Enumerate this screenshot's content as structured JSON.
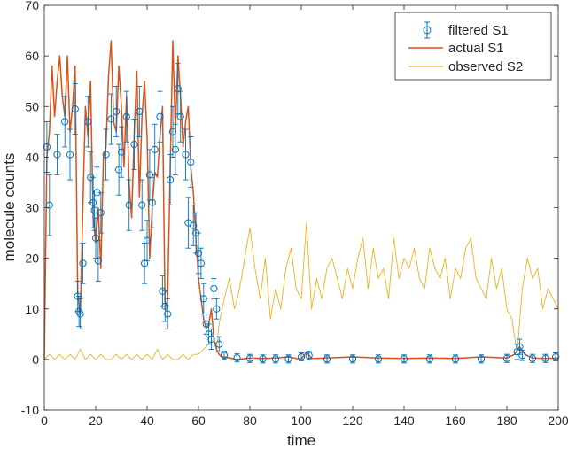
{
  "chart_data": {
    "type": "line",
    "xlabel": "time",
    "ylabel": "molecule counts",
    "xlim": [
      0,
      200
    ],
    "ylim": [
      -10,
      70
    ],
    "xticks": [
      0,
      20,
      40,
      60,
      80,
      100,
      120,
      140,
      160,
      180,
      200
    ],
    "yticks": [
      -10,
      0,
      10,
      20,
      30,
      40,
      50,
      60,
      70
    ],
    "grid": false,
    "legend_position": "top-right",
    "series": [
      {
        "name": "filtered S1",
        "kind": "errorbar",
        "color": "#0072BD",
        "x": [
          1,
          2,
          5,
          8,
          10,
          12,
          13,
          13.5,
          14,
          15,
          17,
          18,
          19,
          19.5,
          20,
          20.5,
          21,
          22,
          24,
          26,
          28,
          29,
          30,
          32,
          33,
          35,
          37,
          38,
          39,
          40,
          41,
          42,
          43,
          45,
          46,
          47,
          48,
          49,
          50,
          51,
          52,
          53,
          55,
          56,
          57,
          58,
          59,
          60,
          61,
          62,
          63,
          64,
          65,
          66,
          67,
          68,
          70,
          75,
          80,
          85,
          90,
          95,
          100,
          103,
          110,
          120,
          130,
          140,
          150,
          160,
          170,
          180,
          184,
          185,
          186,
          190,
          195,
          199
        ],
        "y": [
          42,
          30.5,
          40.5,
          47,
          40.5,
          49.5,
          12.5,
          9.5,
          9,
          19,
          47,
          36,
          31,
          29.5,
          24,
          33,
          19.5,
          29,
          40.5,
          47.5,
          49,
          37.5,
          41,
          48,
          30.5,
          42.5,
          49,
          30.5,
          19,
          23.5,
          36.5,
          31,
          41.5,
          48,
          13.5,
          10.5,
          9,
          35.5,
          45,
          41.5,
          53.5,
          48,
          40.5,
          27,
          39,
          26.5,
          25,
          21,
          19,
          12,
          7,
          5,
          4,
          14,
          10,
          3,
          0.8,
          0.3,
          0.2,
          0.1,
          0.1,
          0.1,
          0.5,
          0.8,
          0.1,
          0.1,
          0.1,
          0.1,
          0.1,
          0.1,
          0.1,
          0.2,
          1.5,
          2.5,
          0.8,
          0.2,
          0.2,
          0.5
        ],
        "err": [
          5,
          6,
          4,
          5,
          5,
          5,
          3,
          3,
          3,
          4,
          5,
          5,
          5,
          4,
          4,
          5,
          4,
          4,
          5,
          5,
          5,
          5,
          5,
          5,
          5,
          5,
          5,
          5,
          4,
          4,
          5,
          5,
          5,
          5,
          3,
          3,
          3,
          5,
          5,
          5,
          5,
          5,
          5,
          5,
          5,
          4,
          4,
          4,
          3,
          3,
          2,
          2,
          2,
          2,
          2,
          1.5,
          0.8,
          0.8,
          0.8,
          0.8,
          0.8,
          0.8,
          0.8,
          0.8,
          0.8,
          0.8,
          0.8,
          0.8,
          0.8,
          0.8,
          0.8,
          0.8,
          1.5,
          1.5,
          1,
          0.8,
          0.8,
          0.8
        ]
      },
      {
        "name": "actual S1",
        "kind": "line",
        "color": "#D95319",
        "x": [
          0,
          1,
          2,
          3,
          4,
          5,
          6,
          7,
          8,
          9,
          10,
          11,
          12,
          13,
          14,
          15,
          16,
          17,
          18,
          19,
          20,
          21,
          22,
          23,
          24,
          25,
          26,
          27,
          28,
          29,
          30,
          31,
          32,
          33,
          34,
          35,
          36,
          37,
          38,
          39,
          40,
          41,
          42,
          43,
          44,
          45,
          46,
          47,
          48,
          49,
          50,
          51,
          52,
          53,
          54,
          55,
          56,
          57,
          58,
          59,
          60,
          61,
          62,
          63,
          64,
          65,
          66,
          67,
          68,
          69,
          70,
          75,
          80,
          85,
          90,
          95,
          100,
          102,
          104,
          110,
          120,
          130,
          140,
          150,
          160,
          170,
          180,
          183,
          185,
          187,
          190,
          195,
          200
        ],
        "y": [
          0,
          40,
          45,
          58,
          48,
          55,
          60,
          52,
          48,
          60,
          45,
          50,
          58,
          13,
          9,
          30,
          50,
          44,
          55,
          28,
          23,
          30,
          18,
          40,
          42,
          56,
          63,
          47,
          45,
          58,
          50,
          38,
          52,
          35,
          28,
          45,
          57,
          32,
          48,
          55,
          44,
          20,
          30,
          37,
          36,
          44,
          50,
          10,
          12,
          38,
          63,
          45,
          60,
          52,
          42,
          47,
          50,
          38,
          33,
          24,
          16,
          12,
          8,
          6,
          7,
          10,
          4,
          2,
          1,
          0.5,
          0.5,
          0,
          0.3,
          0.2,
          0.3,
          0.5,
          0,
          1.5,
          0.2,
          0.3,
          0.5,
          0.3,
          0.2,
          0.3,
          0.2,
          0.5,
          0.3,
          1,
          2.5,
          1,
          0.3,
          0.2,
          0.3
        ]
      },
      {
        "name": "observed S2",
        "kind": "line",
        "color": "#EDB120",
        "x": [
          0,
          2,
          4,
          6,
          8,
          10,
          12,
          14,
          16,
          18,
          20,
          22,
          24,
          26,
          28,
          30,
          32,
          34,
          36,
          38,
          40,
          42,
          44,
          46,
          48,
          50,
          52,
          54,
          56,
          58,
          60,
          62,
          64,
          66,
          67,
          68,
          70,
          72,
          74,
          76,
          78,
          80,
          82,
          84,
          86,
          88,
          90,
          92,
          94,
          96,
          98,
          100,
          102,
          104,
          106,
          108,
          110,
          112,
          114,
          116,
          118,
          120,
          122,
          124,
          126,
          128,
          130,
          132,
          134,
          136,
          138,
          140,
          142,
          144,
          146,
          148,
          150,
          152,
          154,
          156,
          158,
          160,
          162,
          164,
          166,
          168,
          170,
          172,
          174,
          176,
          178,
          180,
          182,
          184,
          186,
          188,
          190,
          192,
          194,
          196,
          198,
          200
        ],
        "y": [
          0,
          1,
          0,
          1,
          0,
          1,
          0,
          2,
          0,
          1,
          0,
          1,
          0,
          0,
          1,
          0,
          1,
          0,
          1,
          0,
          1,
          0,
          2,
          0,
          1,
          0,
          0,
          1,
          0,
          1,
          1,
          2,
          3,
          4,
          2,
          7,
          12,
          16,
          10,
          14,
          20,
          26,
          18,
          12,
          20,
          8,
          14,
          10,
          18,
          22,
          14,
          12,
          27,
          10,
          16,
          12,
          18,
          20,
          16,
          12,
          18,
          14,
          20,
          24,
          14,
          22,
          16,
          18,
          12,
          24,
          16,
          20,
          18,
          22,
          16,
          14,
          22,
          18,
          16,
          20,
          12,
          18,
          16,
          22,
          24,
          16,
          14,
          12,
          20,
          14,
          18,
          10,
          8,
          1,
          14,
          20,
          16,
          18,
          10,
          14,
          12,
          10
        ]
      }
    ]
  }
}
